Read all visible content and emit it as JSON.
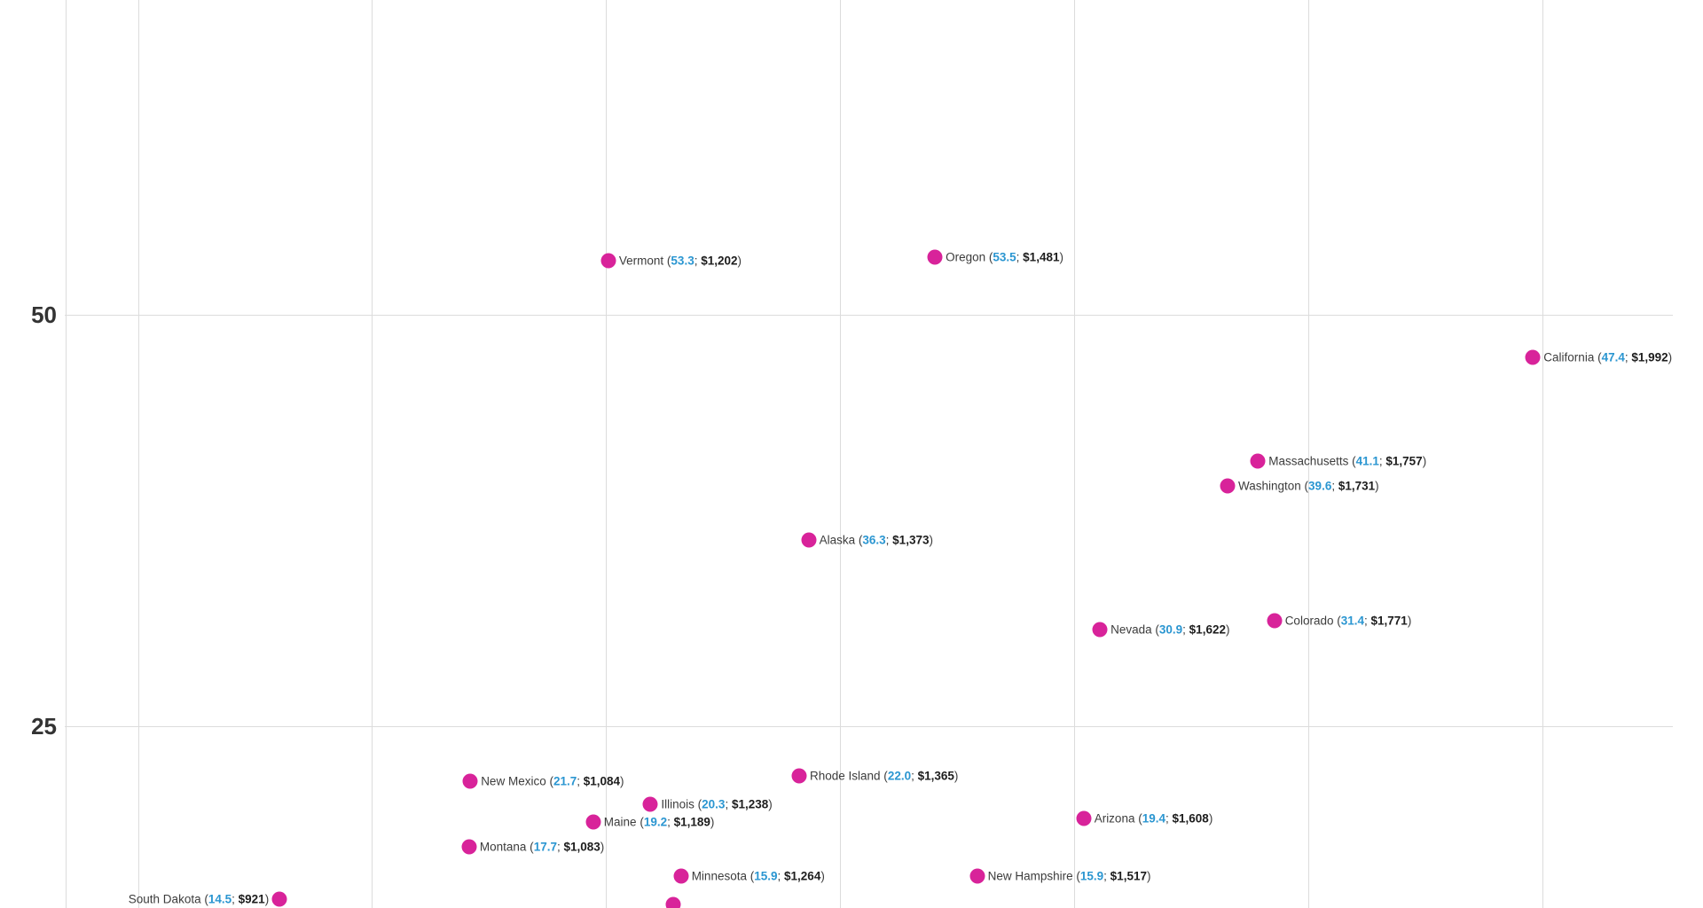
{
  "chart_data": {
    "type": "scatter",
    "title": "",
    "x_axis": {
      "label": "",
      "unit": "USD",
      "gridline_values": [
        800,
        1000,
        1200,
        1400,
        1600,
        1800,
        2000
      ],
      "tick_labels_visible": false,
      "visible_range": [
        745,
        2110
      ]
    },
    "y_axis": {
      "label": "",
      "ticks": [
        {
          "value": 50,
          "label": "50"
        },
        {
          "value": 25,
          "label": "25"
        }
      ],
      "visible_range": [
        13.9,
        69.1
      ]
    },
    "grid": true,
    "legend_position": "none",
    "colors": {
      "point": "#d8239a",
      "metric_text": "#2b96d1",
      "amount_text": "#1d1d1d",
      "name_text": "#3c3c3c",
      "gridline": "#dcdcdc",
      "tick_text": "#333333"
    },
    "points": [
      {
        "name": "Vermont",
        "metric": 53.3,
        "metric_label": "53.3",
        "amount_usd": 1202,
        "amount_label": "$1,202",
        "label_side": "right",
        "label_visible": true
      },
      {
        "name": "Oregon",
        "metric": 53.5,
        "metric_label": "53.5",
        "amount_usd": 1481,
        "amount_label": "$1,481",
        "label_side": "right",
        "label_visible": true
      },
      {
        "name": "California",
        "metric": 47.4,
        "metric_label": "47.4",
        "amount_usd": 1992,
        "amount_label": "$1,992",
        "label_side": "right",
        "label_visible": true
      },
      {
        "name": "Massachusetts",
        "metric": 41.1,
        "metric_label": "41.1",
        "amount_usd": 1757,
        "amount_label": "$1,757",
        "label_side": "right",
        "label_visible": true
      },
      {
        "name": "Washington",
        "metric": 39.6,
        "metric_label": "39.6",
        "amount_usd": 1731,
        "amount_label": "$1,731",
        "label_side": "right",
        "label_visible": true
      },
      {
        "name": "Alaska",
        "metric": 36.3,
        "metric_label": "36.3",
        "amount_usd": 1373,
        "amount_label": "$1,373",
        "label_side": "right",
        "label_visible": true
      },
      {
        "name": "Colorado",
        "metric": 31.4,
        "metric_label": "31.4",
        "amount_usd": 1771,
        "amount_label": "$1,771",
        "label_side": "right",
        "label_visible": true
      },
      {
        "name": "Nevada",
        "metric": 30.9,
        "metric_label": "30.9",
        "amount_usd": 1622,
        "amount_label": "$1,622",
        "label_side": "right",
        "label_visible": true
      },
      {
        "name": "Rhode Island",
        "metric": 22.0,
        "metric_label": "22.0",
        "amount_usd": 1365,
        "amount_label": "$1,365",
        "label_side": "right",
        "label_visible": true
      },
      {
        "name": "New Mexico",
        "metric": 21.7,
        "metric_label": "21.7",
        "amount_usd": 1084,
        "amount_label": "$1,084",
        "label_side": "right",
        "label_visible": true
      },
      {
        "name": "Illinois",
        "metric": 20.3,
        "metric_label": "20.3",
        "amount_usd": 1238,
        "amount_label": "$1,238",
        "label_side": "right",
        "label_visible": true
      },
      {
        "name": "Arizona",
        "metric": 19.4,
        "metric_label": "19.4",
        "amount_usd": 1608,
        "amount_label": "$1,608",
        "label_side": "right",
        "label_visible": true
      },
      {
        "name": "Maine",
        "metric": 19.2,
        "metric_label": "19.2",
        "amount_usd": 1189,
        "amount_label": "$1,189",
        "label_side": "right",
        "label_visible": true
      },
      {
        "name": "Montana",
        "metric": 17.7,
        "metric_label": "17.7",
        "amount_usd": 1083,
        "amount_label": "$1,083",
        "label_side": "right",
        "label_visible": true
      },
      {
        "name": "Minnesota",
        "metric": 15.9,
        "metric_label": "15.9",
        "amount_usd": 1264,
        "amount_label": "$1,264",
        "label_side": "right",
        "label_visible": true
      },
      {
        "name": "New Hampshire",
        "metric": 15.9,
        "metric_label": "15.9",
        "amount_usd": 1517,
        "amount_label": "$1,517",
        "label_side": "right",
        "label_visible": true
      },
      {
        "name": "South Dakota",
        "metric": 14.5,
        "metric_label": "14.5",
        "amount_usd": 921,
        "amount_label": "$921",
        "label_side": "left",
        "label_visible": true
      },
      {
        "name": "",
        "metric": 14.2,
        "metric_label": "",
        "amount_usd": 1257,
        "amount_label": "",
        "label_side": "right",
        "label_visible": false
      }
    ]
  }
}
